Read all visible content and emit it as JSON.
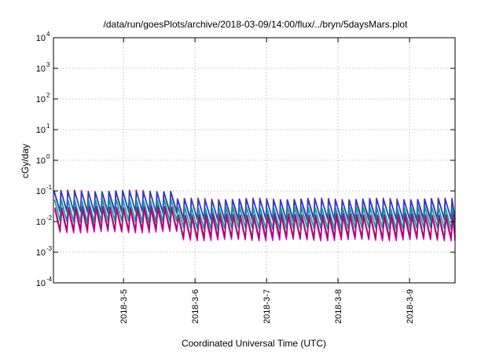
{
  "chart_data": {
    "type": "line",
    "title": "/data/run/goesPlots/archive/2018-03-09/14:00/flux/../bryn/5daysMars.plot",
    "xlabel": "Coordinated Universal Time (UTC)",
    "ylabel": "cGy/day",
    "yscale": "log",
    "ylim": [
      0.0001,
      10000
    ],
    "xlim": [
      0,
      5.56
    ],
    "grid": true,
    "legend": "none",
    "y_ticks": [
      {
        "base": "10",
        "exp": "-4",
        "value": 0.0001
      },
      {
        "base": "10",
        "exp": "-3",
        "value": 0.001
      },
      {
        "base": "10",
        "exp": "-2",
        "value": 0.01
      },
      {
        "base": "10",
        "exp": "-1",
        "value": 0.1
      },
      {
        "base": "10",
        "exp": "0",
        "value": 1
      },
      {
        "base": "10",
        "exp": "1",
        "value": 10
      },
      {
        "base": "10",
        "exp": "2",
        "value": 100
      },
      {
        "base": "10",
        "exp": "3",
        "value": 1000
      },
      {
        "base": "10",
        "exp": "4",
        "value": 10000
      }
    ],
    "x_ticks": [
      {
        "label": "2018-3-5",
        "value": 0.97
      },
      {
        "label": "2018-3-6",
        "value": 1.96
      },
      {
        "label": "2018-3-7",
        "value": 2.95
      },
      {
        "label": "2018-3-8",
        "value": 3.94
      },
      {
        "label": "2018-3-9",
        "value": 4.93
      }
    ],
    "cycle_days": 0.095,
    "series": [
      {
        "color": "#c8102e",
        "peak_early": 0.1,
        "trough_early": 0.02,
        "peak_late": 0.055,
        "trough_late": 0.011
      },
      {
        "color": "#2040d0",
        "peak_early": 0.095,
        "trough_early": 0.021,
        "peak_late": 0.052,
        "trough_late": 0.012
      },
      {
        "color": "#00a0a0",
        "peak_early": 0.05,
        "trough_early": 0.01,
        "peak_late": 0.028,
        "trough_late": 0.006
      },
      {
        "color": "#e000e0",
        "peak_early": 0.025,
        "trough_early": 0.0045,
        "peak_late": 0.014,
        "trough_late": 0.0025
      },
      {
        "color": "#a01060",
        "peak_early": 0.03,
        "trough_early": 0.0055,
        "peak_late": 0.017,
        "trough_late": 0.003
      }
    ]
  }
}
